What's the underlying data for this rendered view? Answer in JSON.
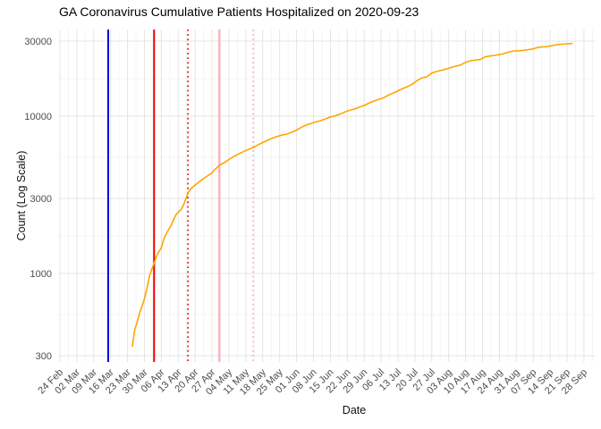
{
  "title": "GA Coronavirus Cumulative Patients Hospitalized on 2020-09-23",
  "chart_data": {
    "type": "line",
    "title": "GA Coronavirus Cumulative Patients Hospitalized on 2020-09-23",
    "xlabel": "Date",
    "ylabel": "Count (Log Scale)",
    "y_scale": "log10",
    "ylim": [
      274,
      35600
    ],
    "y_ticks": [
      300,
      1000,
      3000,
      10000,
      30000
    ],
    "y_tick_labels": [
      "300",
      "1000",
      "3000",
      "10000",
      "30000"
    ],
    "x_start_date": "2020-02-24",
    "x_end_date": "2020-09-28",
    "x_tick_interval_days": 7,
    "x_tick_labels": [
      "24 Feb",
      "02 Mar",
      "09 Mar",
      "16 Mar",
      "23 Mar",
      "30 Mar",
      "06 Apr",
      "13 Apr",
      "20 Apr",
      "27 Apr",
      "04 May",
      "11 May",
      "18 May",
      "25 May",
      "01 Jun",
      "08 Jun",
      "15 Jun",
      "22 Jun",
      "29 Jun",
      "06 Jul",
      "13 Jul",
      "20 Jul",
      "27 Jul",
      "03 Aug",
      "10 Aug",
      "17 Aug",
      "24 Aug",
      "31 Aug",
      "07 Sep",
      "14 Sep",
      "21 Sep",
      "28 Sep"
    ],
    "grid": true,
    "legend_position": "none",
    "colors": {
      "series": "#FFA500",
      "grid_major": "#e4e4e4",
      "grid_minor": "#f2f2f2",
      "tick_label": "#4d4d4d",
      "vline_navy": "#0000DD",
      "vline_red": "#EE0000",
      "vline_pink": "#FFB3C0"
    },
    "vlines": [
      {
        "date": "2020-03-15",
        "color": "#0000DD",
        "style": "solid",
        "width": 2
      },
      {
        "date": "2020-04-03",
        "color": "#EE0000",
        "style": "solid",
        "width": 2
      },
      {
        "date": "2020-04-17",
        "color": "#EE0000",
        "style": "dotted",
        "width": 1.6
      },
      {
        "date": "2020-04-30",
        "color": "#FFB3C0",
        "style": "solid",
        "width": 2.4
      },
      {
        "date": "2020-05-14",
        "color": "#FFB3C0",
        "style": "dotted",
        "width": 1.8
      }
    ],
    "series": [
      {
        "name": "cumulative-patients-hospitalized",
        "color": "#FFA500",
        "points": [
          [
            "2020-03-25",
            345
          ],
          [
            "2020-03-26",
            440
          ],
          [
            "2020-03-27",
            490
          ],
          [
            "2020-03-28",
            560
          ],
          [
            "2020-03-29",
            620
          ],
          [
            "2020-03-30",
            690
          ],
          [
            "2020-03-31",
            800
          ],
          [
            "2020-04-01",
            950
          ],
          [
            "2020-04-02",
            1060
          ],
          [
            "2020-04-03",
            1160
          ],
          [
            "2020-04-04",
            1290
          ],
          [
            "2020-04-05",
            1380
          ],
          [
            "2020-04-06",
            1460
          ],
          [
            "2020-04-07",
            1650
          ],
          [
            "2020-04-08",
            1780
          ],
          [
            "2020-04-09",
            1900
          ],
          [
            "2020-04-10",
            2010
          ],
          [
            "2020-04-11",
            2190
          ],
          [
            "2020-04-12",
            2350
          ],
          [
            "2020-04-13",
            2450
          ],
          [
            "2020-04-14",
            2530
          ],
          [
            "2020-04-15",
            2690
          ],
          [
            "2020-04-16",
            2940
          ],
          [
            "2020-04-17",
            3240
          ],
          [
            "2020-04-18",
            3420
          ],
          [
            "2020-04-19",
            3550
          ],
          [
            "2020-04-20",
            3650
          ],
          [
            "2020-04-21",
            3750
          ],
          [
            "2020-04-22",
            3860
          ],
          [
            "2020-04-23",
            3960
          ],
          [
            "2020-04-24",
            4060
          ],
          [
            "2020-04-25",
            4160
          ],
          [
            "2020-04-26",
            4260
          ],
          [
            "2020-04-27",
            4360
          ],
          [
            "2020-04-28",
            4560
          ],
          [
            "2020-04-29",
            4700
          ],
          [
            "2020-04-30",
            4870
          ],
          [
            "2020-05-02",
            5060
          ],
          [
            "2020-05-04",
            5300
          ],
          [
            "2020-05-06",
            5550
          ],
          [
            "2020-05-08",
            5750
          ],
          [
            "2020-05-10",
            5950
          ],
          [
            "2020-05-12",
            6150
          ],
          [
            "2020-05-14",
            6330
          ],
          [
            "2020-05-16",
            6560
          ],
          [
            "2020-05-18",
            6800
          ],
          [
            "2020-05-20",
            7030
          ],
          [
            "2020-05-22",
            7250
          ],
          [
            "2020-05-24",
            7440
          ],
          [
            "2020-05-26",
            7590
          ],
          [
            "2020-05-28",
            7700
          ],
          [
            "2020-05-30",
            7900
          ],
          [
            "2020-06-01",
            8150
          ],
          [
            "2020-06-03",
            8500
          ],
          [
            "2020-06-05",
            8790
          ],
          [
            "2020-06-07",
            9000
          ],
          [
            "2020-06-09",
            9200
          ],
          [
            "2020-06-11",
            9370
          ],
          [
            "2020-06-13",
            9610
          ],
          [
            "2020-06-15",
            9900
          ],
          [
            "2020-06-17",
            10050
          ],
          [
            "2020-06-19",
            10310
          ],
          [
            "2020-06-21",
            10640
          ],
          [
            "2020-06-23",
            10900
          ],
          [
            "2020-06-25",
            11100
          ],
          [
            "2020-06-27",
            11420
          ],
          [
            "2020-06-29",
            11700
          ],
          [
            "2020-07-01",
            12100
          ],
          [
            "2020-07-03",
            12490
          ],
          [
            "2020-07-05",
            12800
          ],
          [
            "2020-07-07",
            13100
          ],
          [
            "2020-07-09",
            13600
          ],
          [
            "2020-07-11",
            14020
          ],
          [
            "2020-07-13",
            14500
          ],
          [
            "2020-07-15",
            15000
          ],
          [
            "2020-07-17",
            15420
          ],
          [
            "2020-07-19",
            16000
          ],
          [
            "2020-07-21",
            16880
          ],
          [
            "2020-07-23",
            17540
          ],
          [
            "2020-07-25",
            17800
          ],
          [
            "2020-07-27",
            18800
          ],
          [
            "2020-07-29",
            19240
          ],
          [
            "2020-07-31",
            19600
          ],
          [
            "2020-08-02",
            19940
          ],
          [
            "2020-08-04",
            20400
          ],
          [
            "2020-08-06",
            20810
          ],
          [
            "2020-08-08",
            21200
          ],
          [
            "2020-08-10",
            21980
          ],
          [
            "2020-08-12",
            22490
          ],
          [
            "2020-08-14",
            22750
          ],
          [
            "2020-08-16",
            22900
          ],
          [
            "2020-08-18",
            23800
          ],
          [
            "2020-08-20",
            24120
          ],
          [
            "2020-08-22",
            24340
          ],
          [
            "2020-08-24",
            24620
          ],
          [
            "2020-08-26",
            25020
          ],
          [
            "2020-08-28",
            25600
          ],
          [
            "2020-08-30",
            25980
          ],
          [
            "2020-09-01",
            26060
          ],
          [
            "2020-09-03",
            26220
          ],
          [
            "2020-09-05",
            26500
          ],
          [
            "2020-09-07",
            26780
          ],
          [
            "2020-09-09",
            27380
          ],
          [
            "2020-09-11",
            27600
          ],
          [
            "2020-09-13",
            27760
          ],
          [
            "2020-09-15",
            28100
          ],
          [
            "2020-09-17",
            28480
          ],
          [
            "2020-09-19",
            28680
          ],
          [
            "2020-09-21",
            28840
          ],
          [
            "2020-09-23",
            28960
          ]
        ]
      }
    ]
  }
}
